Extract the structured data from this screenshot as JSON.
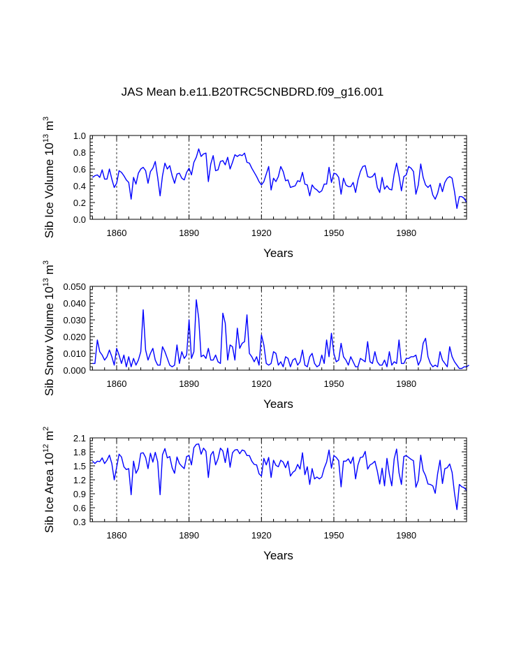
{
  "title": "JAS Mean b.e11.B20TRC5CNBDRD.f09_g16.001",
  "series_color": "#0000ff",
  "x_start_year": 1850,
  "chart_data": [
    {
      "type": "line",
      "name": "panel-ice-volume",
      "ylabel_main": "Sib Ice Volume 10",
      "ylabel_exp": "13",
      "ylabel_unit": " m",
      "ylabel_unit_exp": "3",
      "xlabel": "Years",
      "xlim": [
        1849,
        2005
      ],
      "ylim": [
        0.0,
        1.0
      ],
      "xticks": [
        1860,
        1890,
        1920,
        1950,
        1980
      ],
      "xtick_labels": [
        "1860",
        "1890",
        "1920",
        "1950",
        "1980"
      ],
      "yticks": [
        0.0,
        0.2,
        0.4,
        0.6,
        0.8,
        1.0
      ],
      "ytick_labels": [
        "0.0",
        "0.2",
        "0.4",
        "0.6",
        "0.8",
        "1.0"
      ],
      "grid_x": true,
      "values": [
        0.5,
        0.52,
        0.53,
        0.5,
        0.59,
        0.48,
        0.48,
        0.6,
        0.48,
        0.38,
        0.43,
        0.58,
        0.56,
        0.52,
        0.47,
        0.44,
        0.24,
        0.5,
        0.42,
        0.55,
        0.6,
        0.62,
        0.58,
        0.43,
        0.57,
        0.61,
        0.69,
        0.5,
        0.28,
        0.52,
        0.67,
        0.6,
        0.64,
        0.52,
        0.43,
        0.54,
        0.55,
        0.49,
        0.47,
        0.56,
        0.61,
        0.53,
        0.68,
        0.74,
        0.84,
        0.75,
        0.78,
        0.79,
        0.45,
        0.66,
        0.76,
        0.58,
        0.59,
        0.69,
        0.7,
        0.65,
        0.74,
        0.6,
        0.68,
        0.77,
        0.75,
        0.77,
        0.76,
        0.79,
        0.68,
        0.67,
        0.61,
        0.56,
        0.51,
        0.45,
        0.41,
        0.45,
        0.54,
        0.63,
        0.35,
        0.49,
        0.45,
        0.51,
        0.63,
        0.57,
        0.46,
        0.47,
        0.38,
        0.39,
        0.4,
        0.46,
        0.45,
        0.56,
        0.42,
        0.41,
        0.28,
        0.41,
        0.37,
        0.35,
        0.32,
        0.34,
        0.42,
        0.42,
        0.62,
        0.44,
        0.55,
        0.54,
        0.5,
        0.3,
        0.49,
        0.41,
        0.39,
        0.39,
        0.44,
        0.32,
        0.47,
        0.57,
        0.63,
        0.64,
        0.51,
        0.5,
        0.51,
        0.55,
        0.38,
        0.32,
        0.5,
        0.36,
        0.4,
        0.36,
        0.35,
        0.54,
        0.67,
        0.52,
        0.34,
        0.51,
        0.53,
        0.63,
        0.61,
        0.57,
        0.3,
        0.41,
        0.66,
        0.5,
        0.41,
        0.38,
        0.41,
        0.29,
        0.24,
        0.31,
        0.43,
        0.33,
        0.44,
        0.49,
        0.51,
        0.49,
        0.33,
        0.13,
        0.27,
        0.27,
        0.25,
        0.2
      ]
    },
    {
      "type": "line",
      "name": "panel-snow-volume",
      "ylabel_main": "Sib Snow Volume 10",
      "ylabel_exp": "13",
      "ylabel_unit": " m",
      "ylabel_unit_exp": "3",
      "xlabel": "Years",
      "xlim": [
        1849,
        2005
      ],
      "ylim": [
        0.0,
        0.05
      ],
      "xticks": [
        1860,
        1890,
        1920,
        1950,
        1980
      ],
      "xtick_labels": [
        "1860",
        "1890",
        "1920",
        "1950",
        "1980"
      ],
      "yticks": [
        0.0,
        0.01,
        0.02,
        0.03,
        0.04,
        0.05
      ],
      "ytick_labels": [
        "0.000",
        "0.010",
        "0.020",
        "0.030",
        "0.040",
        "0.050"
      ],
      "grid_x": true,
      "values": [
        0.004,
        0.004,
        0.018,
        0.011,
        0.009,
        0.006,
        0.008,
        0.012,
        0.008,
        0.003,
        0.013,
        0.009,
        0.004,
        0.009,
        0.002,
        0.008,
        0.002,
        0.007,
        0.003,
        0.006,
        0.011,
        0.036,
        0.012,
        0.006,
        0.01,
        0.013,
        0.006,
        0.003,
        0.003,
        0.014,
        0.011,
        0.007,
        0.003,
        0.002,
        0.003,
        0.015,
        0.004,
        0.011,
        0.007,
        0.009,
        0.03,
        0.007,
        0.011,
        0.042,
        0.031,
        0.008,
        0.009,
        0.007,
        0.013,
        0.006,
        0.006,
        0.009,
        0.005,
        0.004,
        0.034,
        0.028,
        0.006,
        0.015,
        0.014,
        0.006,
        0.025,
        0.013,
        0.016,
        0.017,
        0.033,
        0.01,
        0.008,
        0.005,
        0.008,
        0.003,
        0.021,
        0.015,
        0.004,
        0.003,
        0.004,
        0.011,
        0.01,
        0.003,
        0.005,
        0.002,
        0.008,
        0.007,
        0.002,
        0.006,
        0.007,
        0.003,
        0.005,
        0.012,
        0.003,
        0.002,
        0.008,
        0.01,
        0.004,
        0.002,
        0.003,
        0.009,
        0.004,
        0.018,
        0.008,
        0.022,
        0.01,
        0.005,
        0.006,
        0.016,
        0.008,
        0.006,
        0.003,
        0.008,
        0.005,
        0.002,
        0.002,
        0.007,
        0.006,
        0.005,
        0.017,
        0.005,
        0.004,
        0.011,
        0.005,
        0.003,
        0.003,
        0.006,
        0.002,
        0.011,
        0.003,
        0.005,
        0.004,
        0.018,
        0.004,
        0.004,
        0.007,
        0.007,
        0.008,
        0.008,
        0.009,
        0.003,
        0.006,
        0.016,
        0.019,
        0.008,
        0.004,
        0.002,
        0.003,
        0.002,
        0.011,
        0.006,
        0.004,
        0.002,
        0.014,
        0.008,
        0.005,
        0.003,
        0.001,
        0.001,
        0.002,
        0.002,
        0.003
      ]
    },
    {
      "type": "line",
      "name": "panel-ice-area",
      "ylabel_main": "Sib Ice Area 10",
      "ylabel_exp": "12",
      "ylabel_unit": " m",
      "ylabel_unit_exp": "2",
      "xlabel": "Years",
      "xlim": [
        1849,
        2005
      ],
      "ylim": [
        0.3,
        2.1
      ],
      "xticks": [
        1860,
        1890,
        1920,
        1950,
        1980
      ],
      "xtick_labels": [
        "1860",
        "1890",
        "1920",
        "1950",
        "1980"
      ],
      "yticks": [
        0.3,
        0.6,
        0.9,
        1.2,
        1.5,
        1.8,
        2.1
      ],
      "ytick_labels": [
        "0.3",
        "0.6",
        "0.9",
        "1.2",
        "1.5",
        "1.8",
        "2.1"
      ],
      "grid_x": true,
      "values": [
        1.6,
        1.55,
        1.6,
        1.59,
        1.67,
        1.55,
        1.62,
        1.73,
        1.55,
        1.2,
        1.47,
        1.75,
        1.69,
        1.48,
        1.42,
        1.44,
        0.88,
        1.6,
        1.34,
        1.44,
        1.77,
        1.78,
        1.68,
        1.44,
        1.77,
        1.58,
        1.79,
        1.59,
        0.88,
        1.74,
        1.87,
        1.67,
        1.7,
        1.46,
        1.34,
        1.69,
        1.55,
        1.49,
        1.44,
        1.7,
        1.72,
        1.52,
        1.89,
        1.96,
        1.97,
        1.75,
        1.88,
        1.81,
        1.25,
        1.73,
        1.81,
        1.52,
        1.65,
        1.88,
        1.82,
        1.57,
        1.88,
        1.47,
        1.78,
        1.84,
        1.85,
        1.76,
        1.84,
        1.82,
        1.72,
        1.72,
        1.6,
        1.53,
        1.52,
        1.33,
        1.28,
        1.66,
        1.52,
        1.68,
        1.25,
        1.62,
        1.51,
        1.48,
        1.62,
        1.58,
        1.46,
        1.6,
        1.28,
        1.36,
        1.4,
        1.53,
        1.43,
        1.78,
        1.31,
        1.48,
        1.1,
        1.44,
        1.22,
        1.26,
        1.22,
        1.26,
        1.45,
        1.58,
        1.84,
        1.45,
        1.72,
        1.68,
        1.61,
        1.05,
        1.6,
        1.6,
        1.65,
        1.55,
        1.69,
        1.22,
        1.52,
        1.68,
        1.69,
        1.81,
        1.43,
        1.52,
        1.55,
        1.6,
        1.39,
        1.11,
        1.45,
        1.07,
        1.66,
        1.32,
        1.07,
        1.65,
        1.86,
        1.35,
        1.1,
        1.7,
        1.72,
        1.68,
        1.64,
        1.61,
        1.04,
        1.19,
        1.73,
        1.4,
        1.29,
        1.11,
        1.1,
        1.07,
        0.91,
        1.33,
        1.62,
        1.12,
        1.44,
        1.46,
        1.54,
        1.36,
        0.91,
        0.56,
        1.1,
        1.05,
        1.03,
        0.97
      ]
    }
  ]
}
